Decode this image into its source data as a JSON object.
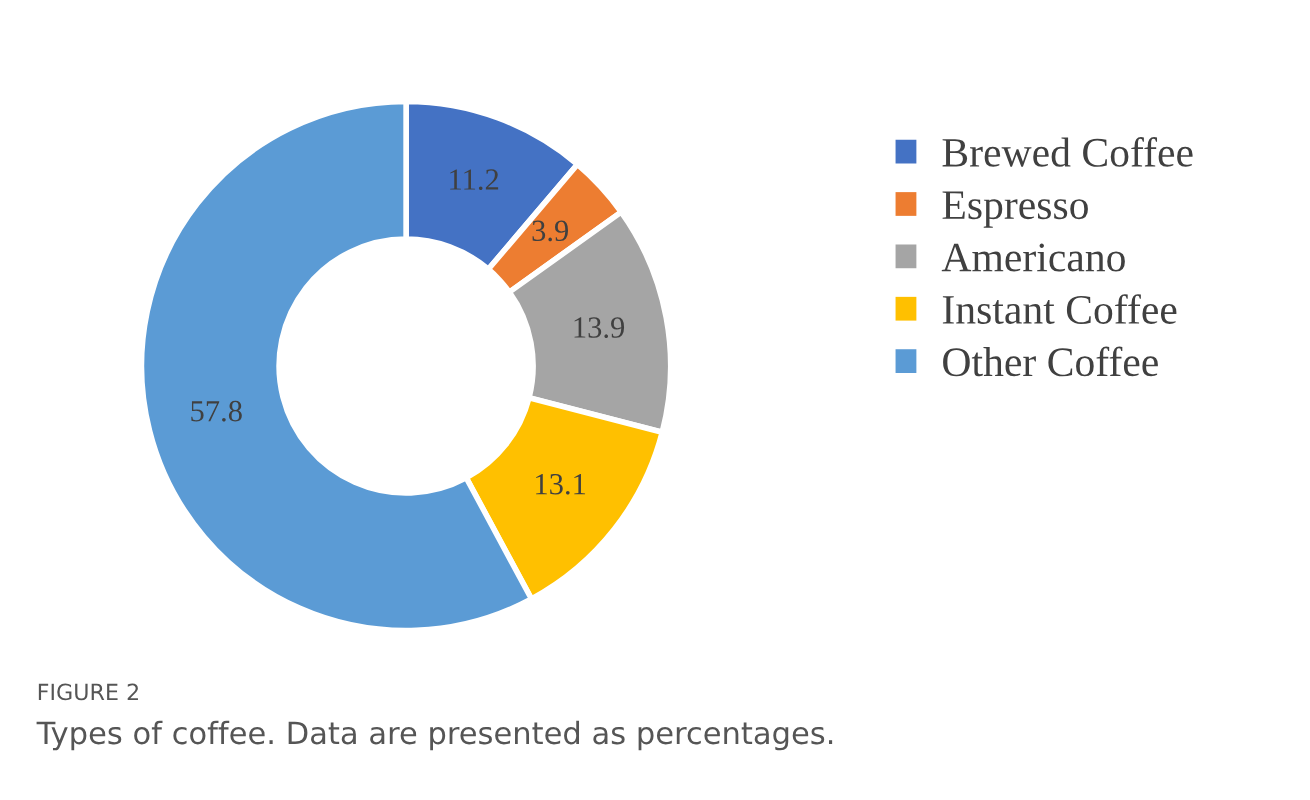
{
  "chart_data": {
    "type": "donut",
    "categories": [
      "Brewed Coffee",
      "Espresso",
      "Americano",
      "Instant Coffee",
      "Other Coffee"
    ],
    "values": [
      11.2,
      3.9,
      13.9,
      13.1,
      57.8
    ],
    "colors": [
      "#4472c4",
      "#ed7d31",
      "#a5a5a5",
      "#ffc000",
      "#5b9bd5"
    ],
    "data_labels": true,
    "legend": "right",
    "annotations": [
      "FIGURE 2",
      "Types of coffee. Data are presented as percentages."
    ]
  }
}
